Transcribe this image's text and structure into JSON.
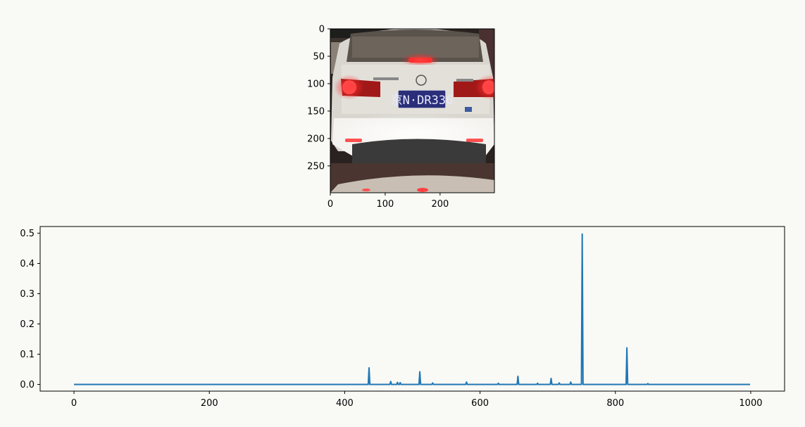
{
  "chart_data": [
    {
      "type": "image",
      "image_subject": "rear view of white car at night, brake lights on, license plate",
      "plate_text": "京N·DR336",
      "x_ticks": [
        0,
        100,
        200
      ],
      "y_ticks": [
        0,
        50,
        100,
        150,
        200,
        250
      ],
      "xlim": [
        0,
        299
      ],
      "ylim": [
        299,
        0
      ],
      "title": "",
      "xlabel": "",
      "ylabel": ""
    },
    {
      "type": "line",
      "title": "",
      "xlabel": "",
      "ylabel": "",
      "xlim": [
        -50,
        1050
      ],
      "ylim": [
        -0.022,
        0.522
      ],
      "x_ticks": [
        0,
        200,
        400,
        600,
        800,
        1000
      ],
      "y_ticks": [
        0.0,
        0.1,
        0.2,
        0.3,
        0.4,
        0.5
      ],
      "x_tick_labels": [
        "0",
        "200",
        "400",
        "600",
        "800",
        "1000"
      ],
      "y_tick_labels": [
        "0.0",
        "0.1",
        "0.2",
        "0.3",
        "0.4",
        "0.5"
      ],
      "grid": false,
      "line_color": "#1f77b4",
      "baseline": 0.0,
      "x_range": [
        0,
        999
      ],
      "peaks": [
        {
          "x": 436,
          "y": 0.055
        },
        {
          "x": 468,
          "y": 0.01
        },
        {
          "x": 478,
          "y": 0.007
        },
        {
          "x": 482,
          "y": 0.006
        },
        {
          "x": 511,
          "y": 0.042
        },
        {
          "x": 530,
          "y": 0.005
        },
        {
          "x": 580,
          "y": 0.008
        },
        {
          "x": 627,
          "y": 0.004
        },
        {
          "x": 656,
          "y": 0.027
        },
        {
          "x": 685,
          "y": 0.004
        },
        {
          "x": 705,
          "y": 0.02
        },
        {
          "x": 717,
          "y": 0.005
        },
        {
          "x": 734,
          "y": 0.008
        },
        {
          "x": 751,
          "y": 0.497
        },
        {
          "x": 817,
          "y": 0.121
        },
        {
          "x": 848,
          "y": 0.003
        }
      ]
    }
  ],
  "colors": {
    "background": "#f9f9f6",
    "line": "#1f77b4"
  }
}
